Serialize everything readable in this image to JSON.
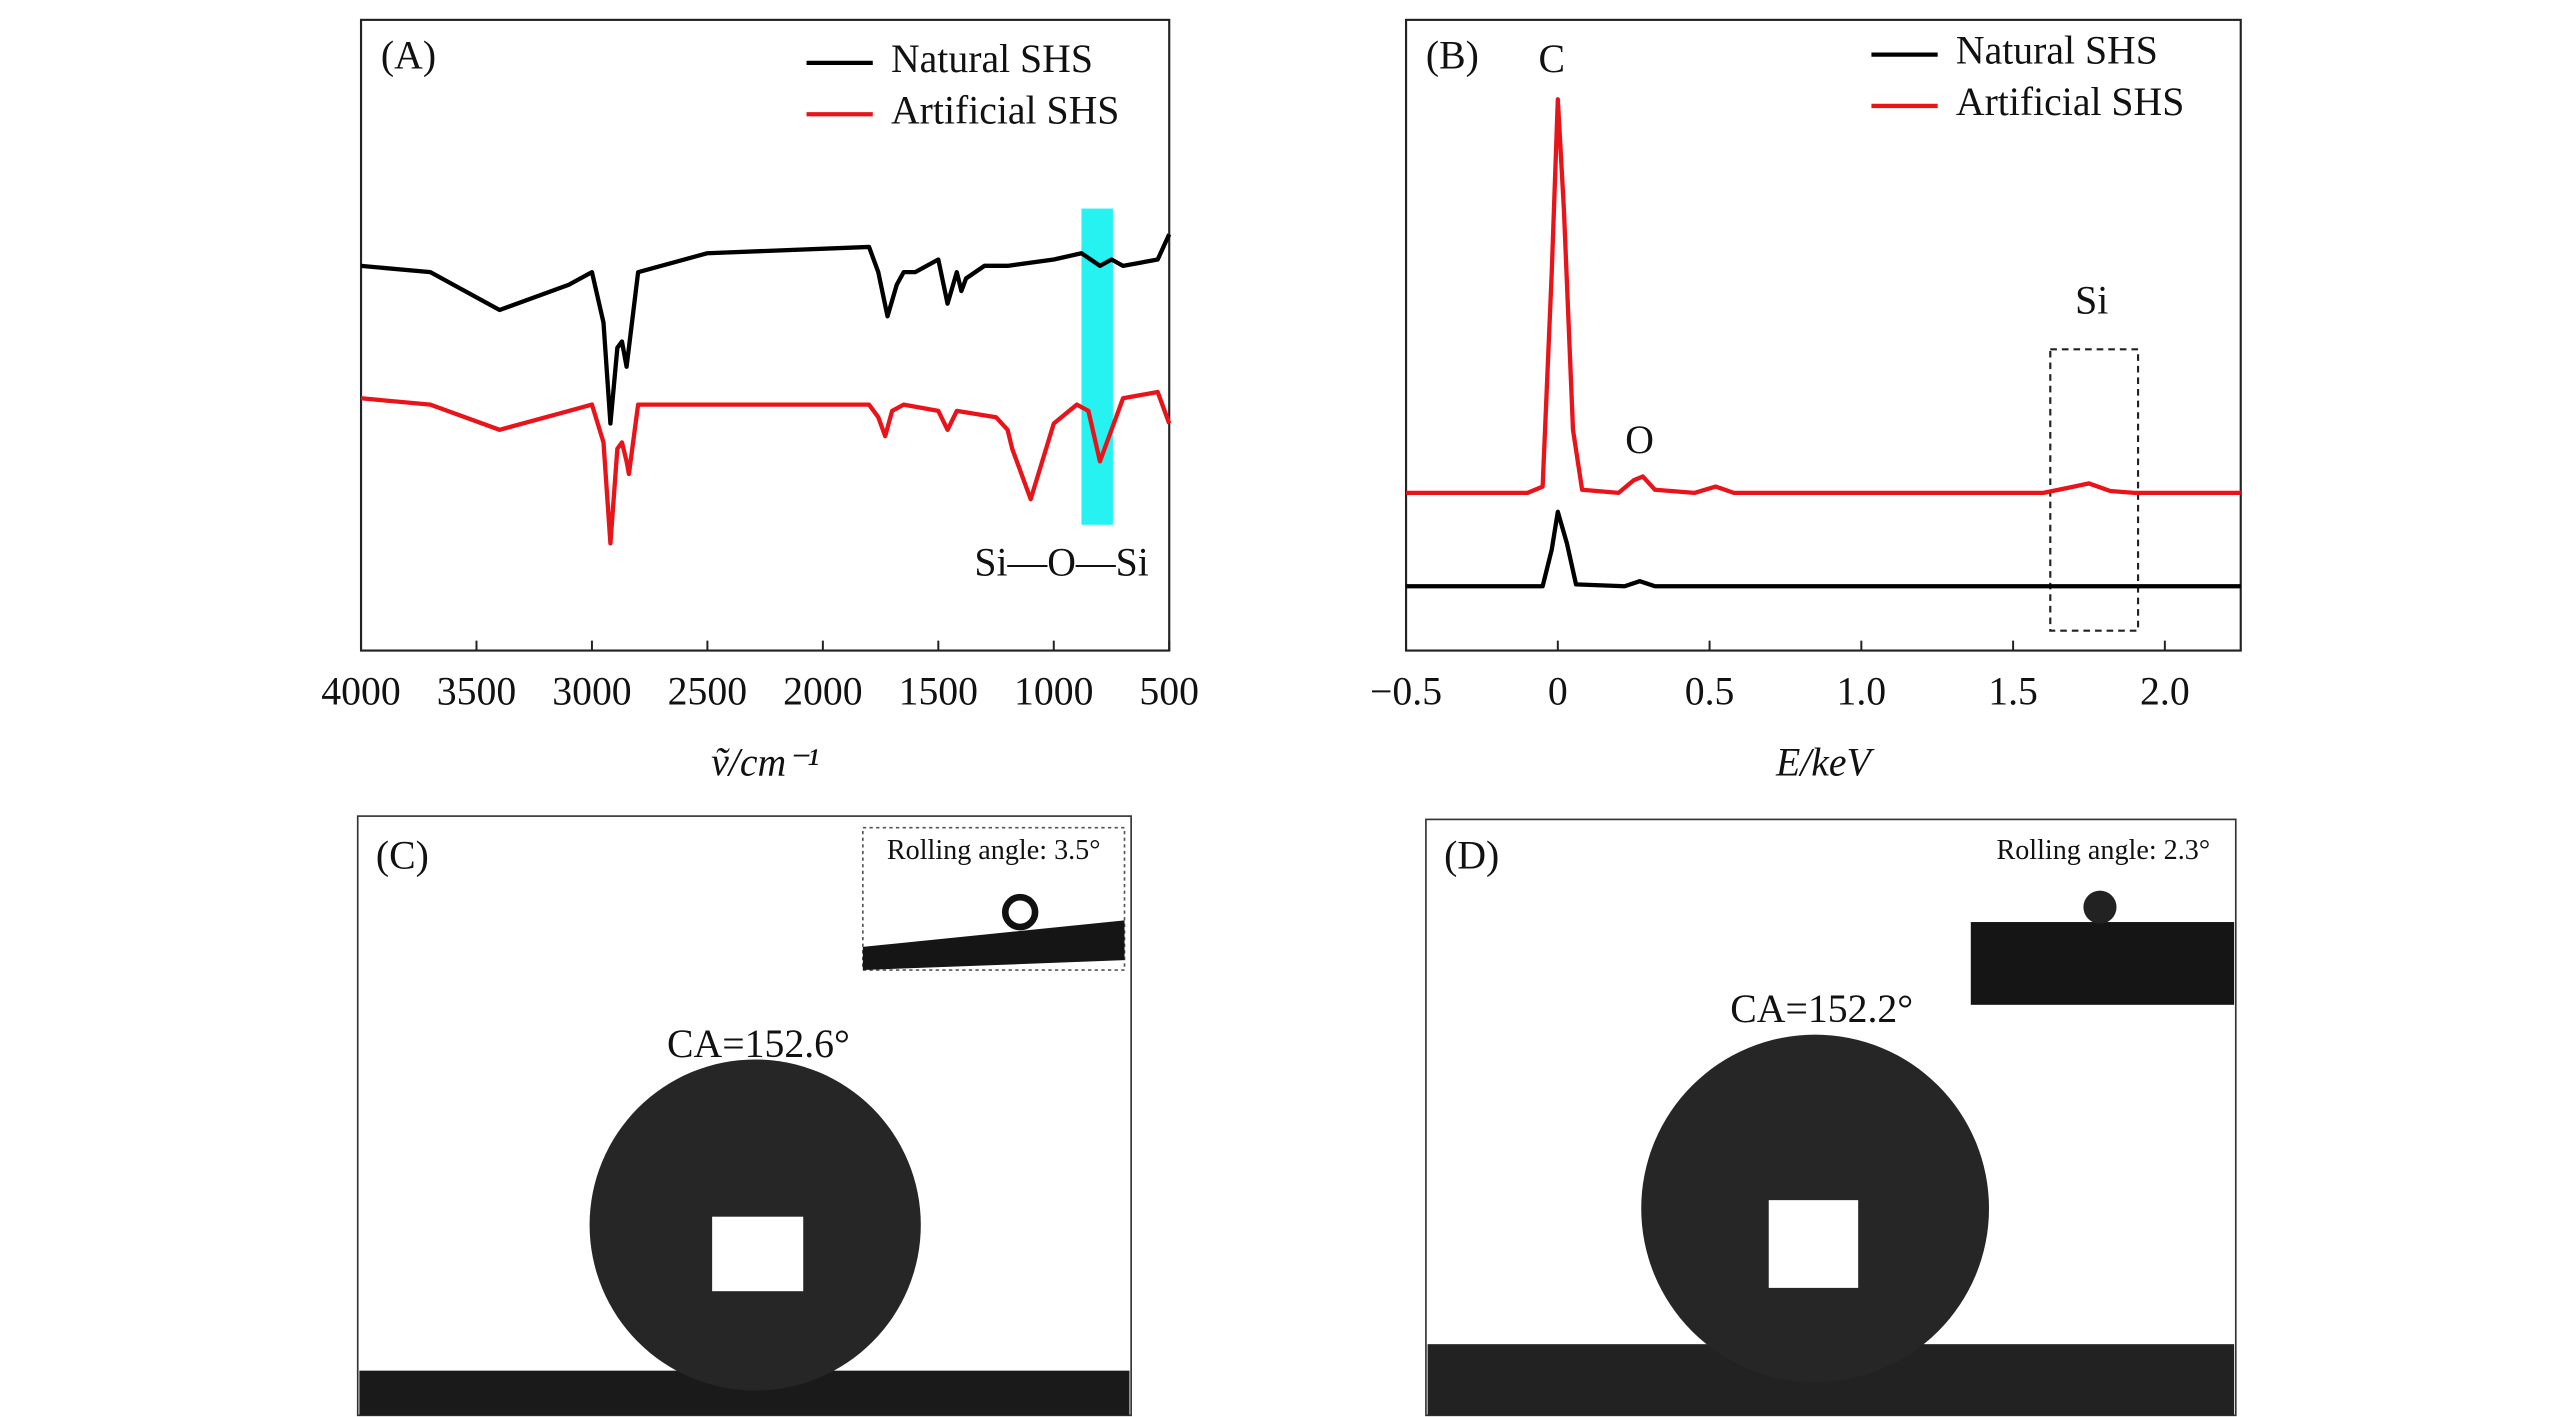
{
  "chart_data": [
    {
      "type": "line",
      "panel_label": "(A)",
      "xlabel": "ṽ/cm⁻¹",
      "xlim": [
        4000,
        500
      ],
      "xticks": [
        4000,
        3500,
        3000,
        2500,
        2000,
        1500,
        1000,
        500
      ],
      "ylim": [
        0,
        100
      ],
      "annotation": "Si—O—Si",
      "series": [
        {
          "name": "Natural SHS",
          "color": "#000000",
          "x": [
            4000,
            3700,
            3400,
            3100,
            3000,
            2950,
            2920,
            2890,
            2870,
            2850,
            2800,
            2500,
            1800,
            1760,
            1720,
            1680,
            1650,
            1600,
            1500,
            1460,
            1420,
            1400,
            1380,
            1300,
            1200,
            1000,
            880,
            800,
            750,
            700,
            550,
            500
          ],
          "values": [
            61,
            60,
            54,
            58,
            60,
            52,
            36,
            48,
            49,
            45,
            60,
            63,
            64,
            60,
            53,
            58,
            60,
            60,
            62,
            55,
            60,
            57,
            59,
            61,
            61,
            62,
            63,
            61,
            62,
            61,
            62,
            66
          ]
        },
        {
          "name": "Artificial SHS",
          "color": "#e8141a",
          "x": [
            4000,
            3700,
            3400,
            3100,
            3000,
            2950,
            2920,
            2890,
            2870,
            2850,
            2840,
            2800,
            1800,
            1760,
            1730,
            1700,
            1650,
            1500,
            1460,
            1420,
            1250,
            1200,
            1180,
            1150,
            1100,
            1050,
            1000,
            900,
            850,
            800,
            750,
            700,
            550,
            500
          ],
          "values": [
            40,
            39,
            35,
            38,
            39,
            33,
            17,
            32,
            33,
            30,
            28,
            39,
            39,
            37,
            34,
            38,
            39,
            38,
            35,
            38,
            37,
            35,
            32,
            29,
            24,
            30,
            36,
            39,
            38,
            30,
            35,
            40,
            41,
            36
          ]
        }
      ]
    },
    {
      "type": "line",
      "panel_label": "(B)",
      "xlabel": "E/keV",
      "xlim": [
        -0.5,
        2.25
      ],
      "xticks": [
        {
          "value": -0.5,
          "label": "−0.5"
        },
        {
          "value": 0,
          "label": "0"
        },
        0.5,
        {
          "value": 1,
          "label": "1.0"
        },
        1.5,
        {
          "value": 2,
          "label": "2.0"
        }
      ],
      "ylim": [
        0,
        100
      ],
      "annotations": [
        "C",
        "O",
        "Si"
      ],
      "series": [
        {
          "name": "Natural SHS",
          "color": "#000000",
          "x": [
            -0.5,
            -0.05,
            -0.02,
            0,
            0.03,
            0.06,
            0.22,
            0.27,
            0.32,
            2.25
          ],
          "values": [
            10.2,
            10.2,
            16,
            22,
            17,
            10.5,
            10.2,
            11,
            10.2,
            10.2
          ]
        },
        {
          "name": "Artificial SHS",
          "color": "#e8141a",
          "x": [
            -0.5,
            -0.1,
            -0.05,
            -0.02,
            0,
            0.02,
            0.05,
            0.08,
            0.2,
            0.25,
            0.28,
            0.32,
            0.45,
            0.52,
            0.58,
            1.6,
            1.7,
            1.75,
            1.82,
            1.9,
            2.25
          ],
          "values": [
            25,
            25,
            26,
            60,
            87.4,
            70,
            35,
            25.5,
            25,
            27,
            27.6,
            25.5,
            25,
            26,
            25,
            25,
            26,
            26.5,
            25.3,
            25,
            25
          ]
        }
      ]
    }
  ],
  "panels": [
    {
      "label": "(C)",
      "inset_text": "Rolling angle: 3.5°",
      "annotation": "CA=152.6°"
    },
    {
      "label": "(D)",
      "inset_text": "Rolling angle: 2.3°",
      "annotation": "CA=152.2°"
    }
  ]
}
